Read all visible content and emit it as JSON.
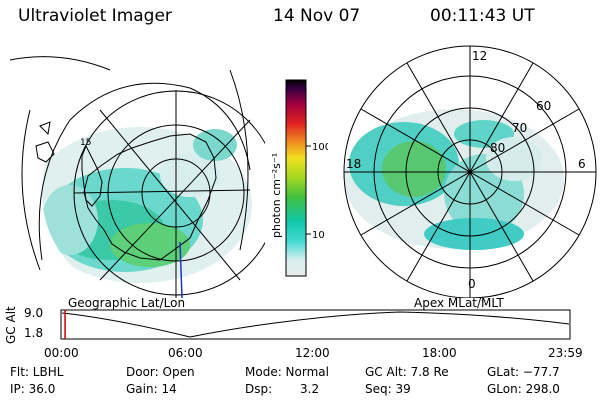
{
  "header": {
    "title": "Ultraviolet Imager",
    "date": "14 Nov 07",
    "time": "00:11:43 UT"
  },
  "colorbar": {
    "unit_label": "photon cm⁻²s⁻¹",
    "ticks": [
      "100",
      "10"
    ],
    "stops": [
      "#e8e8e8",
      "#d8f0f0",
      "#40d8d0",
      "#10c8a8",
      "#40c040",
      "#a0d820",
      "#f0e020",
      "#f09020",
      "#e02020",
      "#a00040",
      "#300040",
      "#000000"
    ]
  },
  "geo_map": {
    "label": "Geographic Lat/Lon",
    "marker": "15"
  },
  "polar_map": {
    "label": "Apex MLat/MLT",
    "mlt_labels": [
      "12",
      "18",
      "6",
      "0"
    ],
    "mlat_labels": [
      "60",
      "70",
      "80"
    ]
  },
  "altitude_plot": {
    "axis_label": "GC Alt",
    "y_ticks": [
      "9.0",
      "1.8"
    ],
    "x_ticks": [
      "00:00",
      "06:00",
      "12:00",
      "18:00",
      "23:59"
    ],
    "current_fraction": 0.008
  },
  "footer": {
    "flt": "Flt: LBHL",
    "ip": "IP: 36.0",
    "door": "Door: Open",
    "gain": "Gain: 14",
    "mode": "Mode: Normal",
    "dsp_label": "Dsp:",
    "dsp_value": "3.2",
    "gc_alt": "GC Alt: 7.8 Re",
    "seq": "Seq: 39",
    "glat": "GLat: −77.7",
    "glon": "GLon: 298.0"
  }
}
